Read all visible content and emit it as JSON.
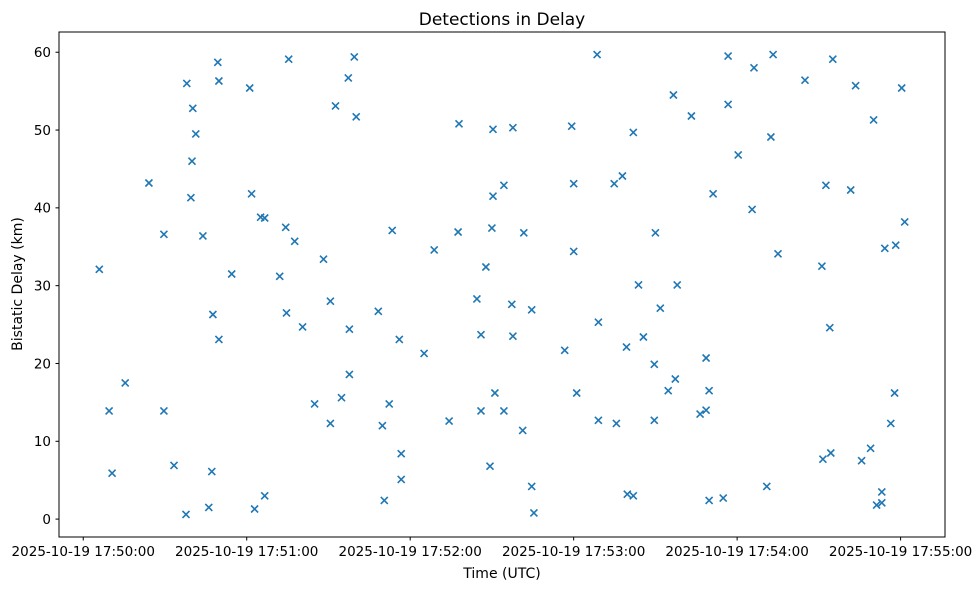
{
  "chart_data": {
    "type": "scatter",
    "title": "Detections in Delay",
    "xlabel": "Time (UTC)",
    "ylabel": "Bistatic Delay (km)",
    "grid": false,
    "legend": "none",
    "marker": {
      "shape": "x",
      "color": "#1f77b4",
      "half_size_px": 3.5,
      "stroke_px": 1.6
    },
    "axis_color": "#000000",
    "background_color": "#ffffff",
    "x_axis": {
      "unit": "seconds after 2025-10-19 17:50:00 UTC",
      "lim": [
        -8.9,
        316.3
      ],
      "ticks": [
        {
          "value": 0,
          "label": "2025-10-19 17:50:00"
        },
        {
          "value": 60,
          "label": "2025-10-19 17:51:00"
        },
        {
          "value": 120,
          "label": "2025-10-19 17:52:00"
        },
        {
          "value": 180,
          "label": "2025-10-19 17:53:00"
        },
        {
          "value": 240,
          "label": "2025-10-19 17:54:00"
        },
        {
          "value": 300,
          "label": "2025-10-19 17:55:00"
        }
      ]
    },
    "y_axis": {
      "unit": "km",
      "lim": [
        -2.3,
        62.6
      ],
      "ticks": [
        {
          "value": 0,
          "label": "0"
        },
        {
          "value": 10,
          "label": "10"
        },
        {
          "value": 20,
          "label": "20"
        },
        {
          "value": 30,
          "label": "30"
        },
        {
          "value": 40,
          "label": "40"
        },
        {
          "value": 50,
          "label": "50"
        },
        {
          "value": 60,
          "label": "60"
        }
      ]
    },
    "points": [
      [
        5.9,
        32.1
      ],
      [
        9.5,
        13.9
      ],
      [
        10.6,
        5.9
      ],
      [
        15.4,
        17.5
      ],
      [
        24.1,
        43.2
      ],
      [
        29.6,
        36.6
      ],
      [
        29.6,
        13.9
      ],
      [
        33.3,
        6.9
      ],
      [
        37.7,
        0.6
      ],
      [
        38.0,
        56.0
      ],
      [
        39.5,
        41.3
      ],
      [
        39.9,
        46.0
      ],
      [
        40.2,
        52.8
      ],
      [
        41.3,
        49.5
      ],
      [
        43.9,
        36.4
      ],
      [
        46.1,
        1.5
      ],
      [
        47.2,
        6.1
      ],
      [
        47.6,
        26.3
      ],
      [
        49.4,
        58.7
      ],
      [
        49.8,
        56.3
      ],
      [
        49.8,
        23.1
      ],
      [
        54.5,
        31.5
      ],
      [
        61.1,
        55.4
      ],
      [
        61.8,
        41.8
      ],
      [
        62.9,
        1.3
      ],
      [
        65.1,
        38.8
      ],
      [
        66.6,
        38.7
      ],
      [
        66.6,
        3.0
      ],
      [
        72.1,
        31.2
      ],
      [
        74.3,
        37.5
      ],
      [
        74.6,
        26.5
      ],
      [
        75.4,
        59.1
      ],
      [
        77.6,
        35.7
      ],
      [
        80.5,
        24.7
      ],
      [
        84.9,
        14.8
      ],
      [
        88.2,
        33.4
      ],
      [
        90.7,
        28.0
      ],
      [
        90.7,
        12.3
      ],
      [
        92.6,
        53.1
      ],
      [
        94.8,
        15.6
      ],
      [
        97.3,
        56.7
      ],
      [
        97.7,
        24.4
      ],
      [
        97.7,
        18.6
      ],
      [
        99.5,
        59.4
      ],
      [
        100.2,
        51.7
      ],
      [
        108.3,
        26.7
      ],
      [
        109.8,
        12.0
      ],
      [
        110.5,
        2.4
      ],
      [
        112.3,
        14.8
      ],
      [
        113.4,
        37.1
      ],
      [
        116.0,
        23.1
      ],
      [
        116.7,
        8.4
      ],
      [
        116.7,
        5.1
      ],
      [
        125.1,
        21.3
      ],
      [
        128.8,
        34.6
      ],
      [
        134.3,
        12.6
      ],
      [
        137.6,
        36.9
      ],
      [
        137.9,
        50.8
      ],
      [
        144.5,
        28.3
      ],
      [
        146.0,
        23.7
      ],
      [
        146.0,
        13.9
      ],
      [
        147.8,
        32.4
      ],
      [
        149.3,
        6.8
      ],
      [
        150.0,
        37.4
      ],
      [
        150.4,
        50.1
      ],
      [
        150.4,
        41.5
      ],
      [
        151.1,
        16.2
      ],
      [
        154.4,
        42.9
      ],
      [
        154.4,
        13.9
      ],
      [
        157.3,
        27.6
      ],
      [
        157.7,
        50.3
      ],
      [
        157.7,
        23.5
      ],
      [
        161.3,
        11.4
      ],
      [
        161.7,
        36.8
      ],
      [
        164.6,
        26.9
      ],
      [
        164.6,
        4.2
      ],
      [
        165.4,
        0.8
      ],
      [
        176.7,
        21.7
      ],
      [
        179.3,
        50.5
      ],
      [
        180.0,
        43.1
      ],
      [
        180.0,
        34.4
      ],
      [
        181.1,
        16.2
      ],
      [
        188.6,
        59.7
      ],
      [
        189.1,
        25.3
      ],
      [
        189.1,
        12.7
      ],
      [
        194.9,
        43.1
      ],
      [
        195.7,
        12.3
      ],
      [
        197.9,
        44.1
      ],
      [
        199.4,
        22.1
      ],
      [
        199.7,
        3.2
      ],
      [
        201.9,
        49.7
      ],
      [
        201.9,
        3.0
      ],
      [
        203.8,
        30.1
      ],
      [
        205.6,
        23.4
      ],
      [
        209.6,
        19.9
      ],
      [
        209.6,
        12.7
      ],
      [
        210.0,
        36.8
      ],
      [
        211.8,
        27.1
      ],
      [
        214.7,
        16.5
      ],
      [
        216.6,
        54.5
      ],
      [
        217.3,
        18.0
      ],
      [
        218.0,
        30.1
      ],
      [
        223.2,
        51.8
      ],
      [
        226.4,
        13.5
      ],
      [
        228.6,
        20.7
      ],
      [
        228.6,
        14.0
      ],
      [
        229.7,
        16.5
      ],
      [
        229.7,
        2.4
      ],
      [
        231.2,
        41.8
      ],
      [
        234.9,
        2.7
      ],
      [
        236.7,
        59.5
      ],
      [
        236.7,
        53.3
      ],
      [
        240.4,
        46.8
      ],
      [
        245.5,
        39.8
      ],
      [
        246.2,
        58.0
      ],
      [
        250.9,
        4.2
      ],
      [
        252.4,
        49.1
      ],
      [
        253.2,
        59.7
      ],
      [
        255.0,
        34.1
      ],
      [
        264.9,
        56.4
      ],
      [
        271.1,
        32.5
      ],
      [
        271.5,
        7.7
      ],
      [
        272.6,
        42.9
      ],
      [
        274.0,
        24.6
      ],
      [
        274.4,
        8.5
      ],
      [
        275.1,
        59.1
      ],
      [
        281.7,
        42.3
      ],
      [
        283.5,
        55.7
      ],
      [
        285.7,
        7.5
      ],
      [
        289.0,
        9.1
      ],
      [
        290.1,
        51.3
      ],
      [
        291.2,
        1.8
      ],
      [
        293.1,
        3.5
      ],
      [
        293.1,
        2.1
      ],
      [
        294.2,
        34.8
      ],
      [
        296.4,
        12.3
      ],
      [
        297.8,
        16.2
      ],
      [
        298.2,
        35.2
      ],
      [
        300.4,
        55.4
      ],
      [
        301.5,
        38.2
      ]
    ]
  }
}
